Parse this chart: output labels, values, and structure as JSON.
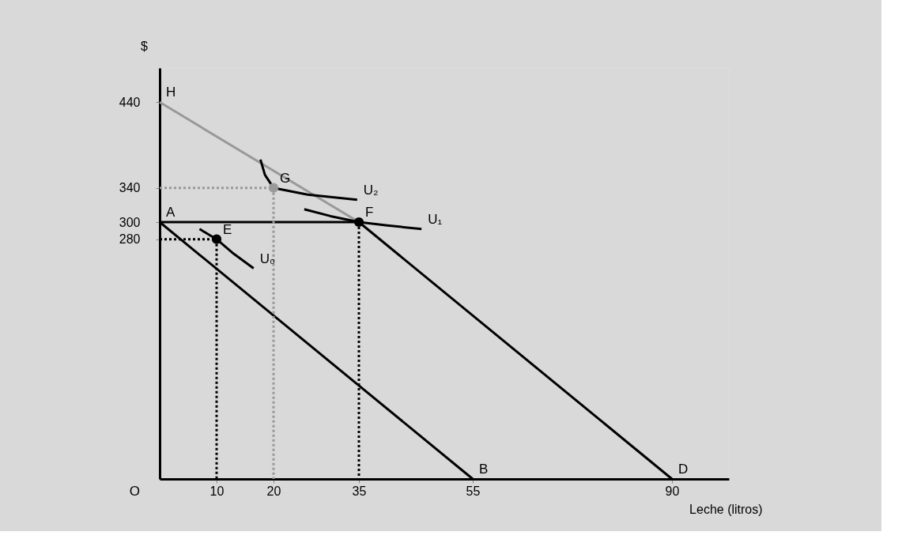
{
  "chart_data": {
    "type": "line",
    "xlabel": "Leche (litros)",
    "ylabel": "$",
    "xlim": [
      0,
      100
    ],
    "ylim": [
      0,
      480
    ],
    "xticks": [
      10,
      20,
      35,
      55,
      90
    ],
    "yticks": [
      280,
      300,
      340,
      440
    ],
    "series": [
      {
        "color": "#000000",
        "line_style": "solid",
        "x": [
          0,
          55
        ],
        "values": [
          300,
          0
        ]
      },
      {
        "color": "#000000",
        "line_style": "solid",
        "x": [
          0,
          35,
          90
        ],
        "values": [
          300,
          300,
          0
        ]
      },
      {
        "color": "#999999",
        "line_style": "solid",
        "x": [
          0,
          35
        ],
        "values": [
          440,
          300
        ]
      },
      {
        "color": "#000000",
        "line_style": "solid",
        "x": [
          7,
          8.5,
          10,
          13,
          16.5
        ],
        "values": [
          292,
          286,
          280,
          263,
          246
        ]
      },
      {
        "color": "#000000",
        "line_style": "solid",
        "x": [
          25.4,
          30,
          35,
          40,
          46
        ],
        "values": [
          315,
          307,
          300,
          296,
          292
        ]
      },
      {
        "color": "#000000",
        "line_style": "solid",
        "x": [
          17.7,
          18.5,
          20,
          26,
          34.7
        ],
        "values": [
          373,
          355,
          340,
          332,
          326
        ]
      },
      {
        "color": "#000000",
        "line_style": "dotted",
        "x": [
          0,
          10,
          10
        ],
        "values": [
          280,
          280,
          0
        ]
      },
      {
        "color": "#000000",
        "line_style": "dotted",
        "x": [
          35,
          35
        ],
        "values": [
          300,
          0
        ]
      },
      {
        "color": "#999999",
        "line_style": "dotted",
        "x": [
          0,
          20,
          20
        ],
        "values": [
          340,
          340,
          0
        ]
      },
      {
        "type": "scatter",
        "color": "#000000",
        "marker": "circle",
        "x": [
          10,
          35
        ],
        "values": [
          280,
          300
        ]
      },
      {
        "type": "scatter",
        "color": "#999999",
        "marker": "circle",
        "x": [
          20
        ],
        "values": [
          340
        ]
      }
    ],
    "annotations": [
      "O",
      {
        "text": "A",
        "x": 0,
        "y": 300
      },
      {
        "text": "B",
        "x": 55,
        "y": 0
      },
      {
        "text": "D",
        "x": 90,
        "y": 0
      },
      {
        "text": "E",
        "x": 10,
        "y": 280
      },
      {
        "text": "F",
        "x": 35,
        "y": 300
      },
      {
        "text": "G",
        "x": 20,
        "y": 340
      },
      {
        "text": "H",
        "x": 0,
        "y": 440
      },
      {
        "text": "U₀",
        "x": 16.5,
        "y": 246
      },
      {
        "text": "U₁",
        "x": 46,
        "y": 292
      },
      {
        "text": "U₂",
        "x": 34.7,
        "y": 326
      }
    ]
  }
}
